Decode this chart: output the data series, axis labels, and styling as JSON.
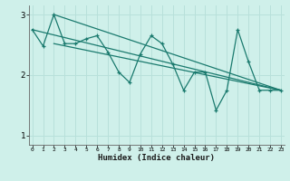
{
  "xlabel": "Humidex (Indice chaleur)",
  "bg_color": "#cff0ea",
  "grid_color": "#b8e0da",
  "line_color": "#1a7a6e",
  "x_data": [
    0,
    1,
    2,
    3,
    4,
    5,
    6,
    7,
    8,
    9,
    10,
    11,
    12,
    13,
    14,
    15,
    16,
    17,
    18,
    19,
    20,
    21,
    22,
    23
  ],
  "line1": [
    2.75,
    2.48,
    3.0,
    2.52,
    2.52,
    2.6,
    2.65,
    2.38,
    2.05,
    1.88,
    2.35,
    2.65,
    2.52,
    2.18,
    1.75,
    2.05,
    2.05,
    1.42,
    1.75,
    2.75,
    2.22,
    1.75,
    1.75,
    1.75
  ],
  "trend1_x": [
    2,
    23
  ],
  "trend1_y": [
    3.0,
    1.75
  ],
  "trend2_x": [
    0,
    23
  ],
  "trend2_y": [
    2.75,
    1.75
  ],
  "trend3_x": [
    2,
    23
  ],
  "trend3_y": [
    2.52,
    1.75
  ],
  "ylim": [
    0.85,
    3.15
  ],
  "xlim": [
    0,
    23
  ],
  "yticks": [
    1,
    2,
    3
  ],
  "xticks": [
    0,
    1,
    2,
    3,
    4,
    5,
    6,
    7,
    8,
    9,
    10,
    11,
    12,
    13,
    14,
    15,
    16,
    17,
    18,
    19,
    20,
    21,
    22,
    23
  ]
}
